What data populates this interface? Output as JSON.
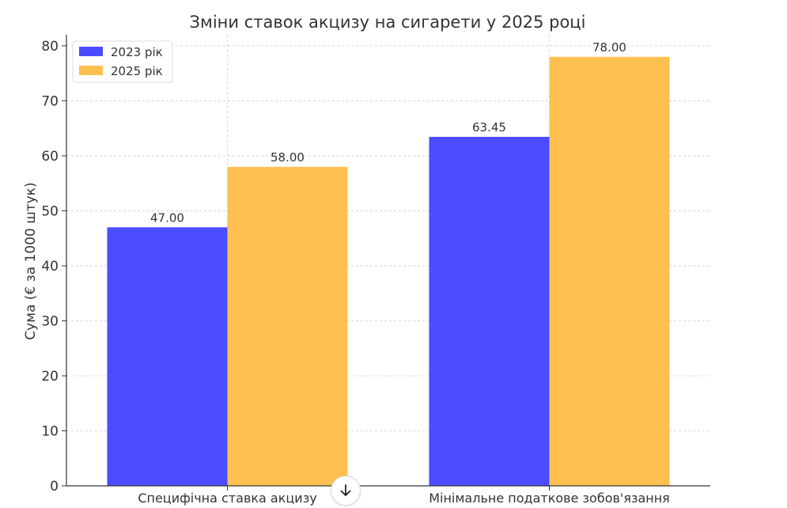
{
  "chart_data": {
    "type": "bar",
    "title": "Зміни ставок акцизу на сигарети у 2025 році",
    "xlabel": "",
    "ylabel": "Сума (€ за 1000 штук)",
    "categories": [
      "Специфічна ставка акцизу",
      "Мінімальне податкове зобов'язання"
    ],
    "series": [
      {
        "name": "2023 рік",
        "values": [
          47.0,
          63.45
        ],
        "color": "#4b4bff"
      },
      {
        "name": "2025 рік",
        "values": [
          58.0,
          78.0
        ],
        "color": "#ffc04f"
      }
    ],
    "value_labels": [
      [
        "47.00",
        "63.45"
      ],
      [
        "58.00",
        "78.00"
      ]
    ],
    "yticks": [
      0,
      10,
      20,
      30,
      40,
      50,
      60,
      70,
      80
    ],
    "ylim": [
      0,
      82
    ],
    "grid": true,
    "legend_position": "top-left"
  },
  "ui": {
    "scroll_icon": "arrow-down-icon"
  }
}
